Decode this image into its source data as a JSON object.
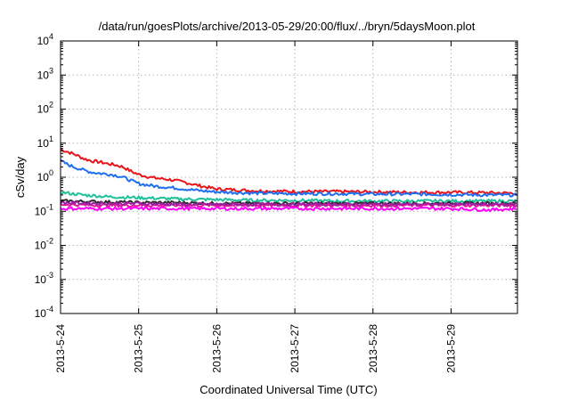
{
  "chart_data": {
    "type": "line",
    "title": "/data/run/goesPlots/archive/2013-05-29/20:00/flux/../bryn/5daysMoon.plot",
    "xlabel": "Coordinated Universal Time (UTC)",
    "ylabel": "cSv/day",
    "x_tick_labels": [
      "2013-5-24",
      "2013-5-25",
      "2013-5-26",
      "2013-5-27",
      "2013-5-28",
      "2013-5-29"
    ],
    "xlim": [
      0,
      5.85
    ],
    "yscale": "log",
    "ylim": [
      0.0001,
      10000
    ],
    "y_ticks": [
      {
        "base": "10",
        "exp": "-4"
      },
      {
        "base": "10",
        "exp": "-3"
      },
      {
        "base": "10",
        "exp": "-2"
      },
      {
        "base": "10",
        "exp": "-1"
      },
      {
        "base": "10",
        "exp": "0"
      },
      {
        "base": "10",
        "exp": "1"
      },
      {
        "base": "10",
        "exp": "2"
      },
      {
        "base": "10",
        "exp": "3"
      },
      {
        "base": "10",
        "exp": "4"
      }
    ],
    "grid": true,
    "series": [
      {
        "color": "#e8141a",
        "x": [
          0,
          0.1,
          0.2,
          0.3,
          0.4,
          0.5,
          0.6,
          0.7,
          0.8,
          0.9,
          1.0,
          1.2,
          1.4,
          1.6,
          1.8,
          2.0,
          2.5,
          3.0,
          3.5,
          4.0,
          4.5,
          5.0,
          5.5,
          5.85
        ],
        "y": [
          6.5,
          5.5,
          4.5,
          3.5,
          3.0,
          2.8,
          2.5,
          2.3,
          2.0,
          1.5,
          1.2,
          0.95,
          0.85,
          0.7,
          0.55,
          0.45,
          0.4,
          0.38,
          0.38,
          0.37,
          0.36,
          0.36,
          0.35,
          0.34
        ]
      },
      {
        "color": "#1e6ff0",
        "x": [
          0,
          0.1,
          0.2,
          0.3,
          0.4,
          0.5,
          0.6,
          0.7,
          0.8,
          0.9,
          1.0,
          1.2,
          1.4,
          1.6,
          1.8,
          2.0,
          2.5,
          3.0,
          3.5,
          4.0,
          4.5,
          5.0,
          5.5,
          5.85
        ],
        "y": [
          3.0,
          2.3,
          1.9,
          1.6,
          1.4,
          1.3,
          1.25,
          1.15,
          1.0,
          0.8,
          0.65,
          0.55,
          0.5,
          0.45,
          0.4,
          0.37,
          0.34,
          0.33,
          0.33,
          0.32,
          0.32,
          0.31,
          0.3,
          0.3
        ]
      },
      {
        "color": "#20c09a",
        "x": [
          0,
          0.3,
          0.6,
          1.0,
          1.5,
          2.0,
          2.5,
          3.0,
          3.5,
          4.0,
          4.5,
          5.0,
          5.5,
          5.85
        ],
        "y": [
          0.36,
          0.3,
          0.27,
          0.25,
          0.23,
          0.22,
          0.21,
          0.21,
          0.2,
          0.2,
          0.2,
          0.2,
          0.2,
          0.2
        ]
      },
      {
        "color": "#2a2a2a",
        "x": [
          0,
          0.5,
          1.0,
          1.5,
          2.0,
          2.5,
          3.0,
          3.5,
          4.0,
          4.5,
          5.0,
          5.5,
          5.85
        ],
        "y": [
          0.2,
          0.19,
          0.18,
          0.18,
          0.17,
          0.17,
          0.17,
          0.17,
          0.17,
          0.17,
          0.17,
          0.17,
          0.17
        ]
      },
      {
        "color": "#e8149a",
        "x": [
          0,
          0.5,
          1.0,
          1.5,
          2.0,
          2.5,
          3.0,
          3.5,
          4.0,
          4.5,
          5.0,
          5.5,
          5.85
        ],
        "y": [
          0.16,
          0.15,
          0.15,
          0.15,
          0.15,
          0.15,
          0.15,
          0.15,
          0.15,
          0.15,
          0.15,
          0.15,
          0.15
        ]
      },
      {
        "color": "#ff00ff",
        "x": [
          0,
          0.5,
          1.0,
          1.5,
          2.0,
          2.5,
          3.0,
          3.5,
          4.0,
          4.5,
          5.0,
          5.5,
          5.85
        ],
        "y": [
          0.12,
          0.12,
          0.12,
          0.12,
          0.12,
          0.12,
          0.12,
          0.12,
          0.12,
          0.12,
          0.12,
          0.11,
          0.12
        ]
      },
      {
        "color": "#9a20a0",
        "x": [
          0,
          0.5,
          1.0,
          1.5,
          2.0,
          2.5,
          3.0,
          3.5,
          4.0,
          4.5,
          5.0,
          5.5,
          5.85
        ],
        "y": [
          0.18,
          0.17,
          0.17,
          0.16,
          0.16,
          0.16,
          0.16,
          0.16,
          0.16,
          0.16,
          0.16,
          0.16,
          0.16
        ]
      }
    ]
  }
}
